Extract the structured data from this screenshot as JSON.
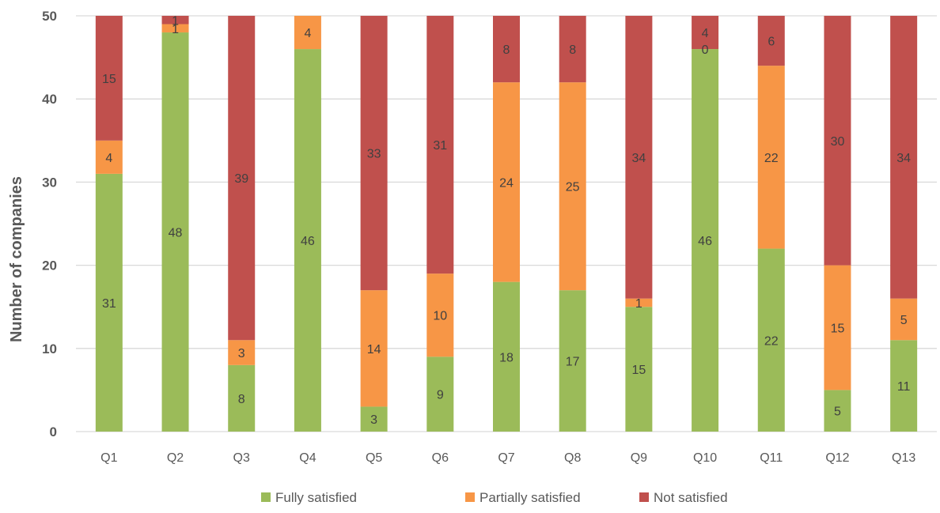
{
  "chart_data": {
    "type": "bar",
    "stacked": true,
    "title": "",
    "xlabel": "",
    "ylabel": "Number of companies",
    "ylim": [
      0,
      50
    ],
    "yticks": [
      0,
      10,
      20,
      30,
      40,
      50
    ],
    "grid": true,
    "legend_position": "bottom",
    "categories": [
      "Q1",
      "Q2",
      "Q3",
      "Q4",
      "Q5",
      "Q6",
      "Q7",
      "Q8",
      "Q9",
      "Q10",
      "Q11",
      "Q12",
      "Q13"
    ],
    "series": [
      {
        "name": "Fully satisfied",
        "color": "#9BBB59",
        "values": [
          31,
          48,
          8,
          46,
          3,
          9,
          18,
          17,
          15,
          46,
          22,
          5,
          11
        ],
        "labels": [
          "31",
          "48",
          "8",
          "46",
          "3",
          "9",
          "18",
          "17",
          "15",
          "46",
          "22",
          "5",
          "11"
        ]
      },
      {
        "name": "Partially satisfied",
        "color": "#F79646",
        "values": [
          4,
          1,
          3,
          4,
          14,
          10,
          24,
          25,
          1,
          0,
          22,
          15,
          5
        ],
        "labels": [
          "4",
          "1",
          "3",
          "4",
          "14",
          "10",
          "24",
          "25",
          "1",
          "0",
          "22",
          "15",
          "5"
        ]
      },
      {
        "name": "Not satisfied",
        "color": "#C0504D",
        "values": [
          15,
          1,
          39,
          0,
          33,
          31,
          8,
          8,
          34,
          4,
          6,
          30,
          34
        ],
        "labels": [
          "15",
          "1",
          "39",
          "",
          "33",
          "31",
          "8",
          "8",
          "34",
          "4",
          "6",
          "30",
          "34"
        ]
      }
    ]
  }
}
